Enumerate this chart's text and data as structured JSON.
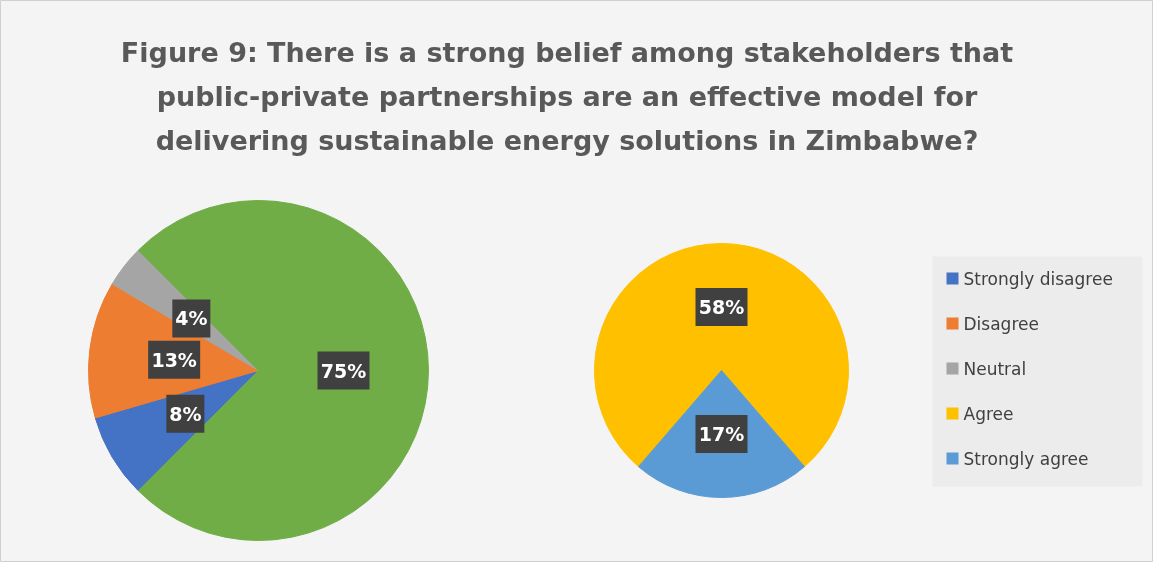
{
  "chart_data": [
    {
      "type": "pie",
      "title": "Figure 9: There is a strong belief among stakeholders that public-private partnerships are an effective model for delivering sustainable energy solutions in Zimbabwe?",
      "categories": [
        "Strongly disagree",
        "Disagree",
        "Neutral",
        null
      ],
      "values": [
        8,
        13,
        4,
        75
      ],
      "colors": [
        "#4472c4",
        "#ed7d31",
        "#a5a5a5",
        "#70ad47"
      ],
      "value_labels": [
        "8%",
        "13%",
        "4%",
        "75%"
      ],
      "legend": "right"
    },
    {
      "type": "pie",
      "categories": [
        "Agree",
        "Strongly agree"
      ],
      "values": [
        58,
        17
      ],
      "colors": [
        "#ffc000",
        "#5b9bd5"
      ],
      "value_labels": [
        "58%",
        "17%"
      ],
      "legend": "right"
    }
  ]
}
